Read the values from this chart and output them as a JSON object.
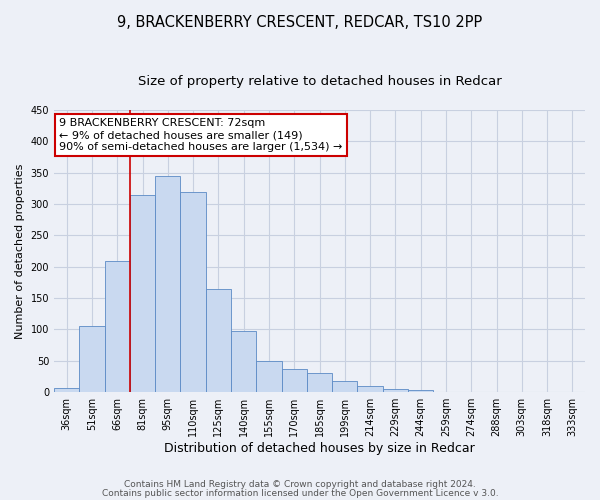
{
  "title": "9, BRACKENBERRY CRESCENT, REDCAR, TS10 2PP",
  "subtitle": "Size of property relative to detached houses in Redcar",
  "xlabel": "Distribution of detached houses by size in Redcar",
  "ylabel": "Number of detached properties",
  "bar_labels": [
    "36sqm",
    "51sqm",
    "66sqm",
    "81sqm",
    "95sqm",
    "110sqm",
    "125sqm",
    "140sqm",
    "155sqm",
    "170sqm",
    "185sqm",
    "199sqm",
    "214sqm",
    "229sqm",
    "244sqm",
    "259sqm",
    "274sqm",
    "288sqm",
    "303sqm",
    "318sqm",
    "333sqm"
  ],
  "bar_heights": [
    7,
    105,
    210,
    315,
    345,
    320,
    165,
    97,
    50,
    37,
    30,
    18,
    10,
    5,
    3,
    1,
    1,
    0,
    0,
    0,
    0
  ],
  "bar_color": "#c9d9f0",
  "bar_edge_color": "#5b8ac5",
  "vline_color": "#cc0000",
  "ylim": [
    0,
    450
  ],
  "annotation_text": "9 BRACKENBERRY CRESCENT: 72sqm\n← 9% of detached houses are smaller (149)\n90% of semi-detached houses are larger (1,534) →",
  "annotation_box_color": "#ffffff",
  "annotation_box_edge_color": "#cc0000",
  "footer_line1": "Contains HM Land Registry data © Crown copyright and database right 2024.",
  "footer_line2": "Contains public sector information licensed under the Open Government Licence v 3.0.",
  "background_color": "#edf0f7",
  "plot_bg_color": "#edf0f7",
  "grid_color": "#c8d0e0",
  "title_fontsize": 10.5,
  "subtitle_fontsize": 9.5,
  "xlabel_fontsize": 9,
  "ylabel_fontsize": 8,
  "tick_fontsize": 7,
  "annotation_fontsize": 8,
  "footer_fontsize": 6.5
}
